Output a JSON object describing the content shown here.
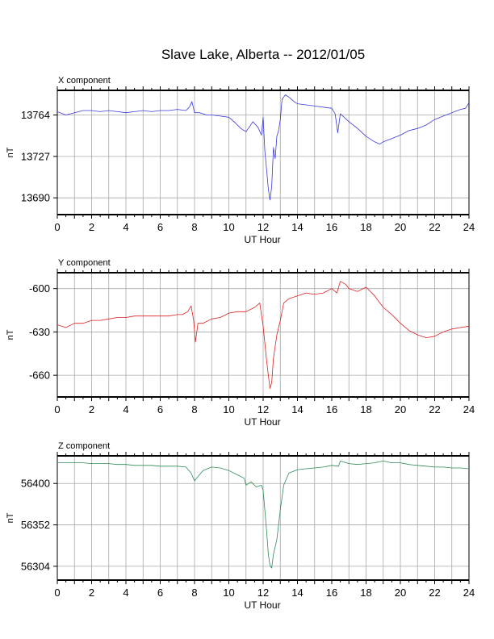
{
  "page_title": "Slave Lake, Alberta -- 2012/01/05",
  "chart_data": [
    {
      "type": "line",
      "title": "X component",
      "xlabel": "UT Hour",
      "ylabel": "nT",
      "xlim": [
        0,
        24
      ],
      "ylim": [
        13675,
        13786
      ],
      "x_ticks": [
        0,
        2,
        4,
        6,
        8,
        10,
        12,
        14,
        16,
        18,
        20,
        22,
        24
      ],
      "y_ticks": [
        13690,
        13727,
        13764
      ],
      "grid": true,
      "color": "#3a3ae0",
      "series": [
        {
          "x": [
            0,
            0.5,
            1,
            1.5,
            2,
            2.5,
            3,
            3.5,
            4,
            4.5,
            5,
            5.5,
            6,
            6.5,
            7,
            7.5,
            7.7,
            7.85,
            8,
            8.3,
            8.7,
            9,
            9.5,
            10,
            10.3,
            10.7,
            11,
            11.4,
            11.7,
            11.9,
            12,
            12.1,
            12.2,
            12.3,
            12.4,
            12.5,
            12.6,
            12.7,
            12.8,
            12.9,
            13,
            13.1,
            13.2,
            13.3,
            13.5,
            13.8,
            14,
            14.5,
            15,
            15.5,
            16,
            16.2,
            16.35,
            16.5,
            17,
            17.5,
            18,
            18.5,
            18.8,
            19,
            19.5,
            20,
            20.5,
            21,
            21.5,
            22,
            22.5,
            23,
            23.5,
            23.8,
            24
          ],
          "y": [
            13767,
            13764,
            13766,
            13768,
            13768,
            13767,
            13768,
            13767,
            13766,
            13767,
            13768,
            13767,
            13768,
            13768,
            13769,
            13768,
            13771,
            13776,
            13766,
            13766,
            13764,
            13764,
            13763,
            13762,
            13758,
            13752,
            13749,
            13758,
            13753,
            13746,
            13762,
            13732,
            13715,
            13698,
            13688,
            13700,
            13735,
            13725,
            13745,
            13750,
            13760,
            13778,
            13780,
            13782,
            13780,
            13776,
            13774,
            13773,
            13772,
            13771,
            13770,
            13765,
            13748,
            13765,
            13758,
            13752,
            13745,
            13740,
            13738,
            13740,
            13743,
            13746,
            13750,
            13752,
            13755,
            13760,
            13763,
            13766,
            13769,
            13770,
            13775
          ]
        }
      ]
    },
    {
      "type": "line",
      "title": "Y component",
      "xlabel": "UT Hour",
      "ylabel": "nT",
      "xlim": [
        0,
        24
      ],
      "ylim": [
        -675,
        -589
      ],
      "x_ticks": [
        0,
        2,
        4,
        6,
        8,
        10,
        12,
        14,
        16,
        18,
        20,
        22,
        24
      ],
      "y_ticks": [
        -660,
        -630,
        -600
      ],
      "grid": true,
      "color": "#e02020",
      "series": [
        {
          "x": [
            0,
            0.5,
            1,
            1.5,
            2,
            2.5,
            3,
            3.5,
            4,
            4.5,
            5,
            5.5,
            6,
            6.5,
            7,
            7.3,
            7.6,
            7.8,
            7.95,
            8.05,
            8.2,
            8.5,
            9,
            9.5,
            10,
            10.5,
            11,
            11.5,
            11.8,
            12,
            12.2,
            12.3,
            12.4,
            12.5,
            12.6,
            12.8,
            13,
            13.2,
            13.5,
            14,
            14.5,
            15,
            15.5,
            16,
            16.3,
            16.5,
            16.8,
            17,
            17.5,
            18,
            18.5,
            19,
            19.5,
            20,
            20.5,
            21,
            21.5,
            22,
            22.5,
            23,
            23.5,
            24
          ],
          "y": [
            -625,
            -627,
            -624,
            -624,
            -622,
            -622,
            -621,
            -620,
            -620,
            -619,
            -619,
            -619,
            -619,
            -619,
            -618,
            -618,
            -616,
            -612,
            -622,
            -637,
            -624,
            -624,
            -621,
            -620,
            -617,
            -616,
            -616,
            -613,
            -610,
            -626,
            -650,
            -660,
            -669,
            -665,
            -648,
            -632,
            -622,
            -610,
            -607,
            -605,
            -603,
            -604,
            -603,
            -600,
            -603,
            -595,
            -597,
            -600,
            -602,
            -599,
            -605,
            -613,
            -618,
            -624,
            -629,
            -632,
            -634,
            -633,
            -630,
            -628,
            -627,
            -626
          ]
        }
      ]
    },
    {
      "type": "line",
      "title": "Z component",
      "xlabel": "UT Hour",
      "ylabel": "nT",
      "xlim": [
        0,
        24
      ],
      "ylim": [
        56288,
        56432
      ],
      "x_ticks": [
        0,
        2,
        4,
        6,
        8,
        10,
        12,
        14,
        16,
        18,
        20,
        22,
        24
      ],
      "y_ticks": [
        56304,
        56352,
        56400
      ],
      "grid": true,
      "color": "#2e8b57",
      "series": [
        {
          "x": [
            0,
            0.5,
            1,
            1.5,
            2,
            2.5,
            3,
            3.5,
            4,
            4.5,
            5,
            5.5,
            6,
            6.5,
            7,
            7.5,
            7.8,
            8,
            8.2,
            8.5,
            9,
            9.5,
            10,
            10.5,
            10.9,
            11,
            11.3,
            11.6,
            11.9,
            12,
            12.2,
            12.3,
            12.4,
            12.5,
            12.6,
            12.8,
            13,
            13.2,
            13.5,
            14,
            14.5,
            15,
            15.5,
            16,
            16.4,
            16.5,
            17,
            17.5,
            18,
            18.5,
            19,
            19.5,
            20,
            20.5,
            21,
            21.5,
            22,
            22.5,
            23,
            23.5,
            24
          ],
          "y": [
            56424,
            56424,
            56424,
            56424,
            56423,
            56423,
            56423,
            56422,
            56422,
            56421,
            56421,
            56421,
            56420,
            56420,
            56420,
            56419,
            56412,
            56403,
            56408,
            56415,
            56419,
            56418,
            56415,
            56410,
            56406,
            56398,
            56402,
            56396,
            56398,
            56392,
            56345,
            56318,
            56305,
            56302,
            56318,
            56335,
            56370,
            56398,
            56412,
            56416,
            56417,
            56418,
            56419,
            56421,
            56420,
            56426,
            56423,
            56422,
            56423,
            56424,
            56426,
            56424,
            56424,
            56422,
            56421,
            56420,
            56419,
            56419,
            56418,
            56418,
            56417
          ]
        }
      ]
    }
  ]
}
